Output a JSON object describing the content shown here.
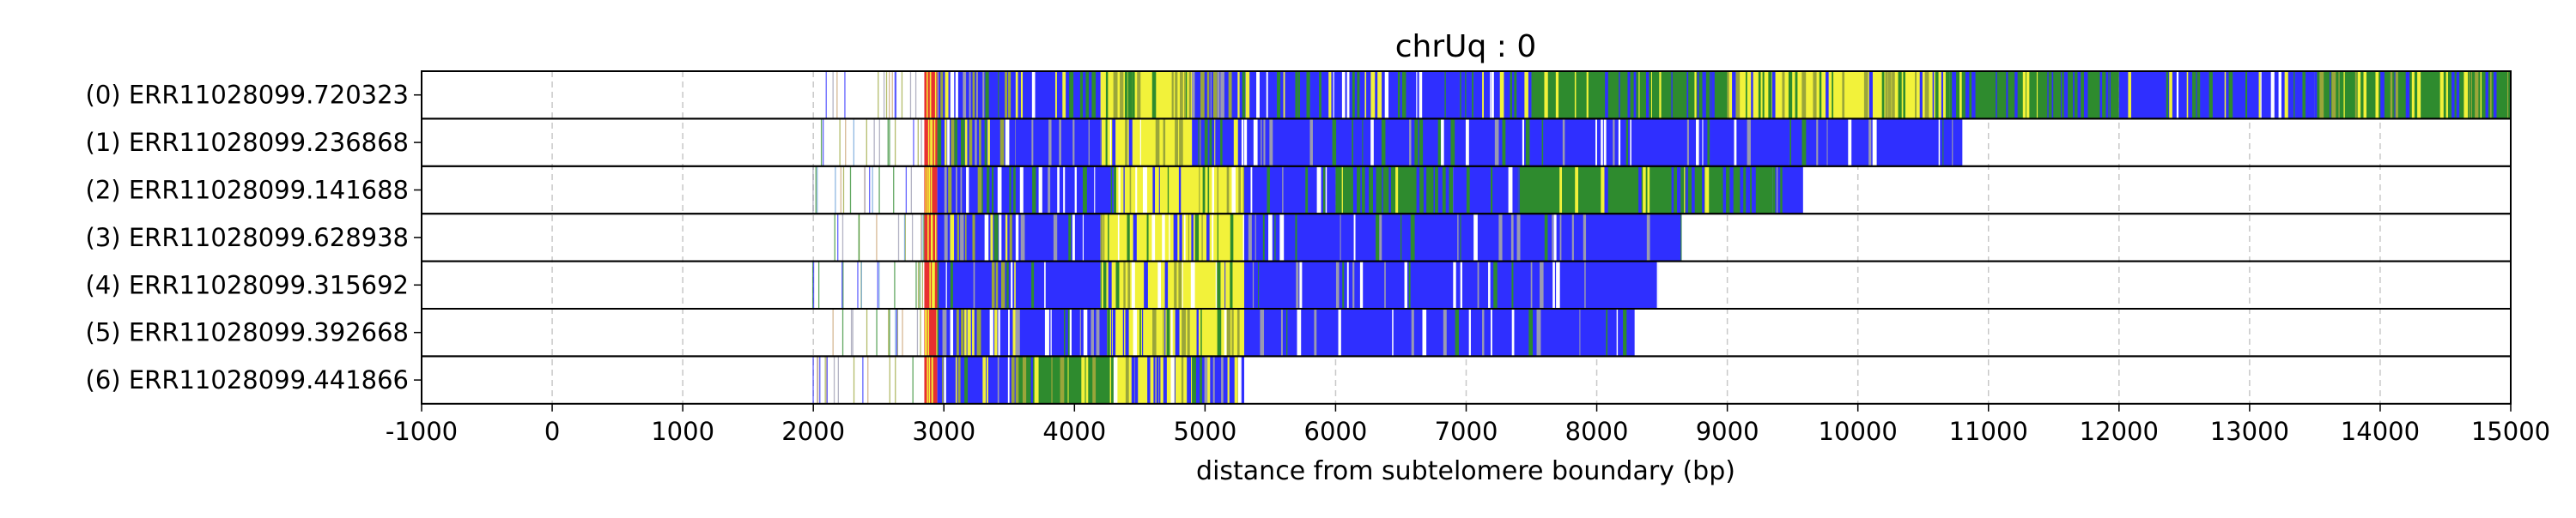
{
  "chart_data": {
    "type": "heatmap",
    "title": "chrUq : 0",
    "xlabel": "distance from subtelomere boundary (bp)",
    "xlim": [
      -1000,
      15000
    ],
    "x_ticks": [
      -1000,
      0,
      1000,
      2000,
      3000,
      4000,
      5000,
      6000,
      7000,
      8000,
      9000,
      10000,
      11000,
      12000,
      13000,
      14000,
      15000
    ],
    "grid": "vertical dashed",
    "colors": {
      "blue": "#2f2fff",
      "green": "#2e8b2e",
      "yellow": "#f2f23a",
      "red": "#e83030",
      "olive": "#9aa63a",
      "gray": "#9a9ab0",
      "frame": "#000000",
      "grid": "#c8c8c8"
    },
    "reads": [
      {
        "label": "(0) ERR11028099.720323",
        "start": 2000,
        "end": 15000,
        "segments": [
          {
            "start": 2000,
            "end": 2850,
            "kind": "sparse"
          },
          {
            "start": 2850,
            "end": 2950,
            "kind": "red"
          },
          {
            "start": 2950,
            "end": 3550,
            "kind": "mixed"
          },
          {
            "start": 3550,
            "end": 4200,
            "kind": "blue-green"
          },
          {
            "start": 4200,
            "end": 4900,
            "kind": "yellow-mixed"
          },
          {
            "start": 4900,
            "end": 5250,
            "kind": "mixed"
          },
          {
            "start": 5250,
            "end": 7500,
            "kind": "blue-green"
          },
          {
            "start": 7500,
            "end": 9000,
            "kind": "green-blue"
          },
          {
            "start": 9000,
            "end": 10700,
            "kind": "yellow-green"
          },
          {
            "start": 10700,
            "end": 12000,
            "kind": "green-blue"
          },
          {
            "start": 12000,
            "end": 13500,
            "kind": "blue-green"
          },
          {
            "start": 13500,
            "end": 15000,
            "kind": "green-yellow"
          }
        ]
      },
      {
        "label": "(1) ERR11028099.236868",
        "start": 2000,
        "end": 10800,
        "segments": [
          {
            "start": 2000,
            "end": 2850,
            "kind": "sparse"
          },
          {
            "start": 2850,
            "end": 2950,
            "kind": "red"
          },
          {
            "start": 2950,
            "end": 3550,
            "kind": "mixed"
          },
          {
            "start": 3550,
            "end": 4200,
            "kind": "blue"
          },
          {
            "start": 4200,
            "end": 4900,
            "kind": "yellow-mixed"
          },
          {
            "start": 4900,
            "end": 5300,
            "kind": "mixed"
          },
          {
            "start": 5300,
            "end": 10800,
            "kind": "blue"
          }
        ]
      },
      {
        "label": "(2) ERR11028099.141688",
        "start": 1950,
        "end": 9580,
        "segments": [
          {
            "start": 1950,
            "end": 2850,
            "kind": "sparse"
          },
          {
            "start": 2850,
            "end": 2950,
            "kind": "red"
          },
          {
            "start": 2950,
            "end": 3550,
            "kind": "mixed"
          },
          {
            "start": 3550,
            "end": 4300,
            "kind": "blue"
          },
          {
            "start": 4300,
            "end": 5300,
            "kind": "yellow-mixed"
          },
          {
            "start": 5300,
            "end": 6000,
            "kind": "blue"
          },
          {
            "start": 6000,
            "end": 6900,
            "kind": "green-blue"
          },
          {
            "start": 6900,
            "end": 7400,
            "kind": "blue"
          },
          {
            "start": 7400,
            "end": 9350,
            "kind": "green"
          },
          {
            "start": 9350,
            "end": 9580,
            "kind": "blue"
          }
        ]
      },
      {
        "label": "(3) ERR11028099.628938",
        "start": 2100,
        "end": 8650,
        "segments": [
          {
            "start": 2100,
            "end": 2850,
            "kind": "sparse"
          },
          {
            "start": 2850,
            "end": 2950,
            "kind": "red"
          },
          {
            "start": 2950,
            "end": 3550,
            "kind": "mixed"
          },
          {
            "start": 3550,
            "end": 4200,
            "kind": "blue"
          },
          {
            "start": 4200,
            "end": 5300,
            "kind": "yellow-mixed"
          },
          {
            "start": 5300,
            "end": 8650,
            "kind": "blue"
          }
        ]
      },
      {
        "label": "(4) ERR11028099.315692",
        "start": 1980,
        "end": 8470,
        "segments": [
          {
            "start": 1980,
            "end": 2850,
            "kind": "sparse"
          },
          {
            "start": 2850,
            "end": 2950,
            "kind": "red"
          },
          {
            "start": 2950,
            "end": 3550,
            "kind": "mixed"
          },
          {
            "start": 3550,
            "end": 4200,
            "kind": "blue"
          },
          {
            "start": 4200,
            "end": 5300,
            "kind": "yellow-mixed"
          },
          {
            "start": 5300,
            "end": 8470,
            "kind": "blue"
          }
        ]
      },
      {
        "label": "(5) ERR11028099.392668",
        "start": 2000,
        "end": 8290,
        "segments": [
          {
            "start": 2000,
            "end": 2850,
            "kind": "sparse"
          },
          {
            "start": 2850,
            "end": 2950,
            "kind": "red"
          },
          {
            "start": 2950,
            "end": 3550,
            "kind": "mixed"
          },
          {
            "start": 3550,
            "end": 4250,
            "kind": "blue"
          },
          {
            "start": 4250,
            "end": 5300,
            "kind": "yellow-mixed"
          },
          {
            "start": 5300,
            "end": 8290,
            "kind": "blue"
          }
        ]
      },
      {
        "label": "(6) ERR11028099.441866",
        "start": 1980,
        "end": 5300,
        "segments": [
          {
            "start": 1980,
            "end": 2850,
            "kind": "sparse"
          },
          {
            "start": 2850,
            "end": 2950,
            "kind": "red"
          },
          {
            "start": 2950,
            "end": 3550,
            "kind": "mixed"
          },
          {
            "start": 3550,
            "end": 4300,
            "kind": "green-yellow"
          },
          {
            "start": 4300,
            "end": 4900,
            "kind": "yellow-mixed"
          },
          {
            "start": 4900,
            "end": 5300,
            "kind": "mixed"
          }
        ]
      }
    ]
  }
}
